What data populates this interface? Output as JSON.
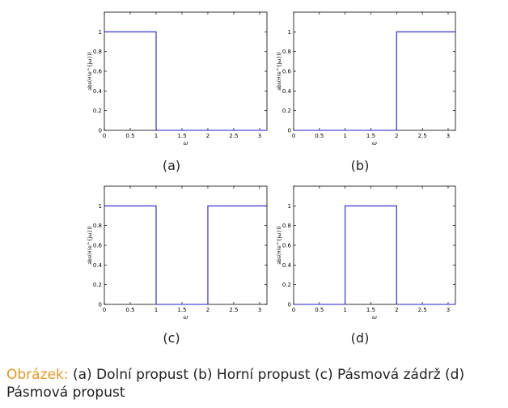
{
  "chart_data": [
    {
      "type": "line",
      "sublabel": "(a)",
      "xlabel": "ω",
      "ylabel": "abs(H(e^{jω}))",
      "xlim": [
        0,
        3.14159
      ],
      "ylim": [
        0,
        1.2
      ],
      "xticks": [
        0,
        0.5,
        1,
        1.5,
        2,
        2.5,
        3
      ],
      "xtick_labels": [
        "0",
        "0.5",
        "1",
        "1.5",
        "2",
        "2.5",
        "3"
      ],
      "yticks": [
        0,
        0.2,
        0.4,
        0.6,
        0.8,
        1
      ],
      "ytick_labels": [
        "0",
        "0.2",
        "0.4",
        "0.6",
        "0.8",
        "1"
      ],
      "series": [
        {
          "color": "#1f1fd6",
          "x": [
            0,
            1,
            1,
            3.14159
          ],
          "y": [
            1,
            1,
            0,
            0
          ]
        }
      ]
    },
    {
      "type": "line",
      "sublabel": "(b)",
      "xlabel": "ω",
      "ylabel": "abs(H(e^{jω}))",
      "xlim": [
        0,
        3.14159
      ],
      "ylim": [
        0,
        1.2
      ],
      "xticks": [
        0,
        0.5,
        1,
        1.5,
        2,
        2.5,
        3
      ],
      "xtick_labels": [
        "0",
        "0.5",
        "1",
        "1.5",
        "2",
        "2.5",
        "3"
      ],
      "yticks": [
        0,
        0.2,
        0.4,
        0.6,
        0.8,
        1
      ],
      "ytick_labels": [
        "0",
        "0.2",
        "0.4",
        "0.6",
        "0.8",
        "1"
      ],
      "series": [
        {
          "color": "#1f1fd6",
          "x": [
            0,
            2,
            2,
            3.14159
          ],
          "y": [
            0,
            0,
            1,
            1
          ]
        }
      ]
    },
    {
      "type": "line",
      "sublabel": "(c)",
      "xlabel": "ω",
      "ylabel": "abs(H(e^{jω}))",
      "xlim": [
        0,
        3.14159
      ],
      "ylim": [
        0,
        1.2
      ],
      "xticks": [
        0,
        0.5,
        1,
        1.5,
        2,
        2.5,
        3
      ],
      "xtick_labels": [
        "0",
        "0.5",
        "1",
        "1.5",
        "2",
        "2.5",
        "3"
      ],
      "yticks": [
        0,
        0.2,
        0.4,
        0.6,
        0.8,
        1
      ],
      "ytick_labels": [
        "0",
        "0.2",
        "0.4",
        "0.6",
        "0.8",
        "1"
      ],
      "series": [
        {
          "color": "#1f1fd6",
          "x": [
            0,
            1,
            1,
            2,
            2,
            3.14159
          ],
          "y": [
            1,
            1,
            0,
            0,
            1,
            1
          ]
        }
      ]
    },
    {
      "type": "line",
      "sublabel": "(d)",
      "xlabel": "ω",
      "ylabel": "abs(H(e^{jω}))",
      "xlim": [
        0,
        3.14159
      ],
      "ylim": [
        0,
        1.2
      ],
      "xticks": [
        0,
        0.5,
        1,
        1.5,
        2,
        2.5,
        3
      ],
      "xtick_labels": [
        "0",
        "0.5",
        "1",
        "1.5",
        "2",
        "2.5",
        "3"
      ],
      "yticks": [
        0,
        0.2,
        0.4,
        0.6,
        0.8,
        1
      ],
      "ytick_labels": [
        "0",
        "0.2",
        "0.4",
        "0.6",
        "0.8",
        "1"
      ],
      "series": [
        {
          "color": "#1f1fd6",
          "x": [
            0,
            1,
            1,
            2,
            2,
            3.14159
          ],
          "y": [
            0,
            0,
            1,
            1,
            0,
            0
          ]
        }
      ]
    }
  ],
  "caption": {
    "prefix": "Obrázek:",
    "text": " (a) Dolní propust (b) Horní propust (c) Pásmová zádrž (d) Pásmová propust"
  },
  "colors": {
    "caption_prefix": "#e8961e",
    "line": "#1f1fd6",
    "axes": "#000000"
  }
}
